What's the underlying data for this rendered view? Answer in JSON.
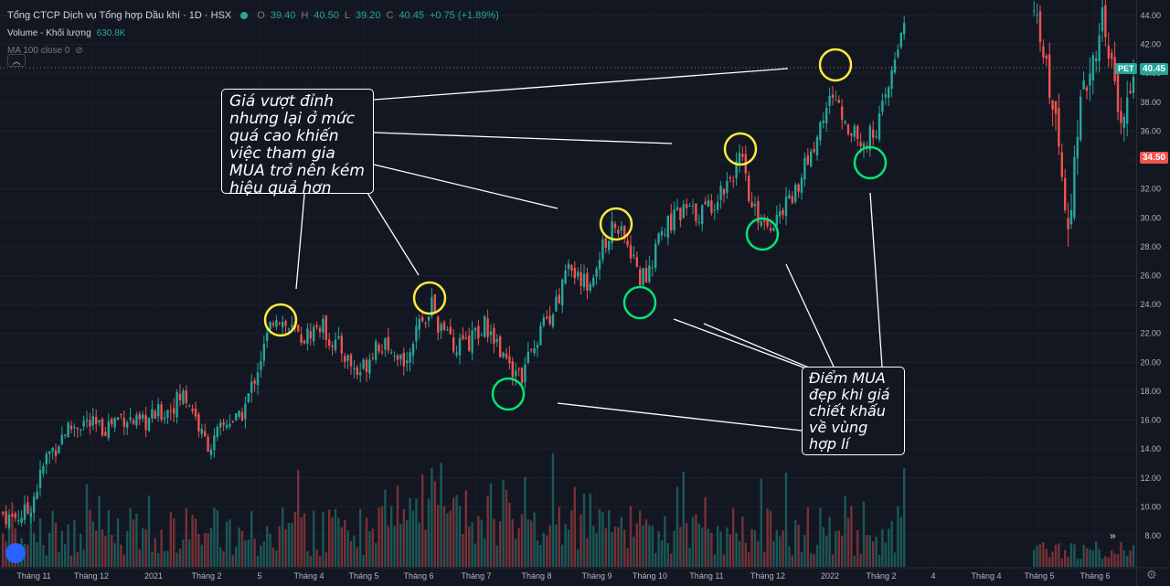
{
  "legend": {
    "title": "Tổng CTCP Dịch vụ Tổng hợp Dầu khí · 1D · HSX",
    "o_label": "O",
    "o_value": "39.40",
    "h_label": "H",
    "h_value": "40.50",
    "l_label": "L",
    "l_value": "39.20",
    "c_label": "C",
    "c_value": "40.45",
    "change": "+0.75 (+1.89%)",
    "volume_label": "Volume - Khối lượng",
    "volume_value": "630.8K",
    "ma_label": "MA 100 close 0"
  },
  "colors": {
    "background": "#131722",
    "up": "#26a69a",
    "down": "#ef5350",
    "circle_top": "#ffeb3b",
    "circle_bottom": "#00e676"
  },
  "annotations": {
    "callout_top": "Giá vượt đỉnh nhưng lại ở mức quá cao khiến việc tham gia MUA trở nên kém hiệu quả hơn",
    "callout_bottom": "Điểm MUA đẹp khi giá chiết khấu về vùng hợp lí"
  },
  "price_tags": {
    "symbol": "PET",
    "last": "40.45",
    "marker": "34.50"
  },
  "icons": [
    "eye-off-icon",
    "chevron-up-icon",
    "gear-icon",
    "logo-icon",
    "double-chevron-right-icon"
  ],
  "chart_data": {
    "type": "candlestick",
    "symbol": "PET",
    "interval": "1D",
    "y_ticks": [
      "44.00",
      "42.00",
      "40.00",
      "38.00",
      "36.00",
      "34.00",
      "32.00",
      "30.00",
      "28.00",
      "26.00",
      "24.00",
      "22.00",
      "20.00",
      "18.00",
      "16.00",
      "14.00",
      "12.00",
      "10.00",
      "8.00"
    ],
    "x_ticks": [
      "Tháng 11",
      "Tháng 12",
      "2021",
      "Tháng 2",
      "5",
      "Tháng 4",
      "Tháng 5",
      "Tháng 6",
      "Tháng 7",
      "Tháng 8",
      "Tháng 9",
      "Tháng 10",
      "Tháng 11",
      "Tháng 12",
      "2022",
      "Tháng 2",
      "4",
      "Tháng 4",
      "Tháng 5",
      "Tháng 6"
    ],
    "ylim": [
      7,
      45
    ],
    "close_path": [
      [
        0,
        9.6
      ],
      [
        10,
        9.2
      ],
      [
        20,
        9.4
      ],
      [
        30,
        9.7
      ],
      [
        40,
        11.5
      ],
      [
        50,
        13.5
      ],
      [
        60,
        14.2
      ],
      [
        70,
        15.3
      ],
      [
        80,
        15.6
      ],
      [
        90,
        15.9
      ],
      [
        100,
        15.6
      ],
      [
        110,
        15.4
      ],
      [
        120,
        15.8
      ],
      [
        130,
        16.3
      ],
      [
        140,
        16.1
      ],
      [
        150,
        15.6
      ],
      [
        160,
        15.9
      ],
      [
        170,
        16.4
      ],
      [
        180,
        16.6
      ],
      [
        190,
        17.2
      ],
      [
        200,
        17.8
      ],
      [
        210,
        16.8
      ],
      [
        220,
        14.8
      ],
      [
        230,
        14.2
      ],
      [
        240,
        15.3
      ],
      [
        250,
        16.1
      ],
      [
        260,
        15.9
      ],
      [
        270,
        17.5
      ],
      [
        280,
        19.5
      ],
      [
        290,
        21.5
      ],
      [
        300,
        23.5
      ],
      [
        310,
        22.6
      ],
      [
        320,
        22.1
      ],
      [
        330,
        21.6
      ],
      [
        340,
        22.2
      ],
      [
        350,
        22.6
      ],
      [
        360,
        21.6
      ],
      [
        370,
        21.1
      ],
      [
        380,
        20.1
      ],
      [
        390,
        19.2
      ],
      [
        400,
        20.0
      ],
      [
        410,
        21.4
      ],
      [
        420,
        21.0
      ],
      [
        430,
        19.8
      ],
      [
        440,
        20.2
      ],
      [
        450,
        21.4
      ],
      [
        460,
        22.6
      ],
      [
        470,
        24.2
      ],
      [
        480,
        22.2
      ],
      [
        490,
        21.6
      ],
      [
        500,
        21.0
      ],
      [
        510,
        21.2
      ],
      [
        520,
        22.0
      ],
      [
        530,
        22.6
      ],
      [
        540,
        21.6
      ],
      [
        550,
        20.6
      ],
      [
        560,
        19.6
      ],
      [
        570,
        19.2
      ],
      [
        580,
        20.6
      ],
      [
        590,
        22.0
      ],
      [
        600,
        23.2
      ],
      [
        610,
        24.6
      ],
      [
        620,
        26.2
      ],
      [
        630,
        26.6
      ],
      [
        640,
        25.1
      ],
      [
        650,
        26.2
      ],
      [
        660,
        28.2
      ],
      [
        670,
        29.6
      ],
      [
        680,
        28.6
      ],
      [
        690,
        27.6
      ],
      [
        700,
        25.6
      ],
      [
        710,
        26.6
      ],
      [
        720,
        28.6
      ],
      [
        730,
        29.6
      ],
      [
        740,
        30.1
      ],
      [
        750,
        30.6
      ],
      [
        760,
        30.2
      ],
      [
        770,
        30.6
      ],
      [
        780,
        31.1
      ],
      [
        790,
        32.1
      ],
      [
        800,
        33.1
      ],
      [
        810,
        34.1
      ],
      [
        820,
        30.6
      ],
      [
        830,
        30.1
      ],
      [
        840,
        29.6
      ],
      [
        850,
        30.1
      ],
      [
        860,
        31.1
      ],
      [
        870,
        32.1
      ],
      [
        880,
        33.6
      ],
      [
        890,
        35.1
      ],
      [
        900,
        37.1
      ],
      [
        910,
        38.6
      ],
      [
        920,
        37.1
      ],
      [
        930,
        36.1
      ],
      [
        940,
        35.1
      ],
      [
        950,
        35.6
      ],
      [
        960,
        36.6
      ],
      [
        970,
        38.6
      ],
      [
        980,
        41.6
      ],
      [
        990,
        44.6
      ]
    ],
    "markers": {
      "overbought": [
        [
          307,
          350
        ],
        [
          470,
          326
        ],
        [
          674,
          245
        ],
        [
          810,
          163
        ],
        [
          914,
          71
        ]
      ],
      "buy": [
        [
          556,
          431
        ],
        [
          700,
          331
        ],
        [
          834,
          256
        ],
        [
          952,
          178
        ]
      ]
    }
  }
}
